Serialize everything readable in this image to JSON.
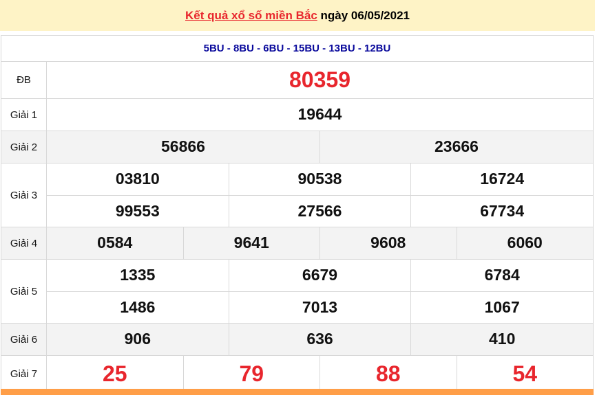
{
  "header": {
    "title_link": "Kết quả xổ số miền Bắc",
    "date_text": " ngày 06/05/2021"
  },
  "codes": "5BU - 8BU - 6BU - 15BU - 13BU - 12BU",
  "prizes": [
    {
      "label": "ĐB",
      "rows": [
        [
          "80359"
        ]
      ],
      "red": true,
      "tall": true
    },
    {
      "label": "Giải 1",
      "rows": [
        [
          "19644"
        ]
      ]
    },
    {
      "label": "Giải 2",
      "rows": [
        [
          "56866",
          "23666"
        ]
      ],
      "alt": true
    },
    {
      "label": "Giải 3",
      "rows": [
        [
          "03810",
          "90538",
          "16724"
        ],
        [
          "99553",
          "27566",
          "67734"
        ]
      ]
    },
    {
      "label": "Giải 4",
      "rows": [
        [
          "0584",
          "9641",
          "9608",
          "6060"
        ]
      ],
      "alt": true
    },
    {
      "label": "Giải 5",
      "rows": [
        [
          "1335",
          "6679",
          "6784"
        ],
        [
          "1486",
          "7013",
          "1067"
        ]
      ]
    },
    {
      "label": "Giải 6",
      "rows": [
        [
          "906",
          "636",
          "410"
        ]
      ],
      "alt": true
    },
    {
      "label": "Giải 7",
      "rows": [
        [
          "25",
          "79",
          "88",
          "54"
        ]
      ],
      "red": true,
      "tall": true
    }
  ],
  "colors": {
    "accent_red": "#e8262d",
    "code_blue": "#0a0a9c",
    "header_bg": "#fef3c6",
    "footer_orange": "#ff9e48"
  }
}
